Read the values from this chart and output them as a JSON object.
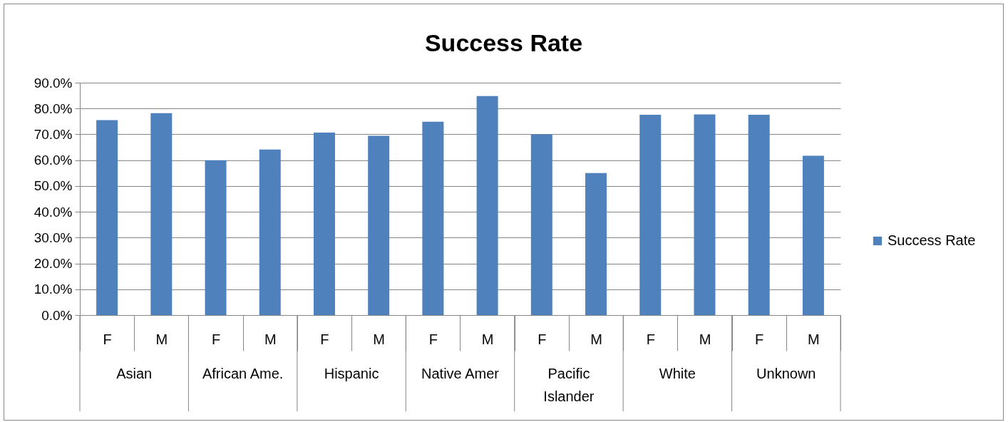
{
  "chart_data": {
    "type": "bar",
    "title": "Success Rate",
    "categories": [
      "F",
      "M",
      "F",
      "M",
      "F",
      "M",
      "F",
      "M",
      "F",
      "M",
      "F",
      "M",
      "F",
      "M"
    ],
    "series": [
      {
        "name": "Success Rate",
        "color": "#4f81bd",
        "values": [
          75.5,
          78.2,
          60.0,
          64.1,
          70.7,
          69.4,
          74.9,
          84.8,
          70.0,
          55.0,
          77.6,
          77.7,
          77.6,
          61.7
        ]
      }
    ],
    "annotations": [
      "Asian",
      "African Ame.",
      "Hispanic",
      "Native Amer",
      "Pacific Islander",
      "White",
      "Unknown"
    ],
    "ylim": [
      0,
      90
    ],
    "yticks": [
      {
        "value": 0,
        "label": "0.0%"
      },
      {
        "value": 10,
        "label": "10.0%"
      },
      {
        "value": 20,
        "label": "20.0%"
      },
      {
        "value": 30,
        "label": "30.0%"
      },
      {
        "value": 40,
        "label": "40.0%"
      },
      {
        "value": 50,
        "label": "50.0%"
      },
      {
        "value": 60,
        "label": "60.0%"
      },
      {
        "value": 70,
        "label": "70.0%"
      },
      {
        "value": 80,
        "label": "80.0%"
      },
      {
        "value": 90,
        "label": "90.0%"
      }
    ],
    "grid": "y",
    "legend": "right"
  }
}
